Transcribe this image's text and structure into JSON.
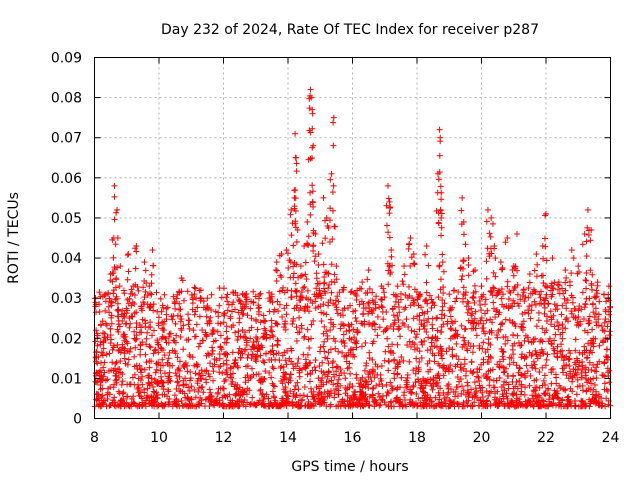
{
  "chart_data": {
    "type": "scatter",
    "title": "Day 232 of 2024, Rate Of TEC Index for receiver p287",
    "xlabel": "GPS time / hours",
    "ylabel": "ROTI / TECUs",
    "xlim": [
      8,
      24
    ],
    "ylim": [
      0,
      0.09
    ],
    "xticks": [
      8,
      10,
      12,
      14,
      16,
      18,
      20,
      22,
      24
    ],
    "xtick_labels": [
      "8",
      "10",
      "12",
      "14",
      "16",
      "18",
      "20",
      "22",
      "24"
    ],
    "yticks": [
      0,
      0.01,
      0.02,
      0.03,
      0.04,
      0.05,
      0.06,
      0.07,
      0.08,
      0.09
    ],
    "ytick_labels": [
      "0",
      "0.01",
      "0.02",
      "0.03",
      "0.04",
      "0.05",
      "0.06",
      "0.07",
      "0.08",
      "0.09"
    ],
    "grid": true,
    "marker": "+",
    "series": [
      {
        "name": "ROTI",
        "color": "#ff0000",
        "points": [
          [
            8.05,
            0.022
          ],
          [
            8.2,
            0.012
          ],
          [
            8.35,
            0.031
          ],
          [
            8.5,
            0.036
          ],
          [
            8.6,
            0.045
          ],
          [
            8.62,
            0.058
          ],
          [
            8.7,
            0.052
          ],
          [
            8.8,
            0.038
          ],
          [
            8.9,
            0.021
          ],
          [
            9.05,
            0.041
          ],
          [
            9.2,
            0.033
          ],
          [
            9.3,
            0.043
          ],
          [
            9.45,
            0.028
          ],
          [
            9.55,
            0.039
          ],
          [
            9.7,
            0.033
          ],
          [
            9.8,
            0.042
          ],
          [
            9.95,
            0.019
          ],
          [
            10.1,
            0.024
          ],
          [
            10.3,
            0.015
          ],
          [
            10.5,
            0.029
          ],
          [
            10.7,
            0.035
          ],
          [
            10.9,
            0.026
          ],
          [
            11.1,
            0.031
          ],
          [
            11.3,
            0.032
          ],
          [
            11.5,
            0.03
          ],
          [
            11.7,
            0.022
          ],
          [
            11.9,
            0.018
          ],
          [
            12.1,
            0.023
          ],
          [
            12.3,
            0.029
          ],
          [
            12.5,
            0.025
          ],
          [
            12.7,
            0.031
          ],
          [
            12.9,
            0.018
          ],
          [
            13.1,
            0.026
          ],
          [
            13.3,
            0.022
          ],
          [
            13.5,
            0.031
          ],
          [
            13.65,
            0.039
          ],
          [
            13.8,
            0.041
          ],
          [
            13.95,
            0.042
          ],
          [
            14.1,
            0.052
          ],
          [
            14.2,
            0.055
          ],
          [
            14.22,
            0.071
          ],
          [
            14.25,
            0.065
          ],
          [
            14.3,
            0.047
          ],
          [
            14.4,
            0.038
          ],
          [
            14.5,
            0.043
          ],
          [
            14.6,
            0.049
          ],
          [
            14.7,
            0.082
          ],
          [
            14.72,
            0.08
          ],
          [
            14.75,
            0.077
          ],
          [
            14.78,
            0.068
          ],
          [
            14.85,
            0.046
          ],
          [
            14.95,
            0.041
          ],
          [
            15.1,
            0.055
          ],
          [
            15.2,
            0.05
          ],
          [
            15.3,
            0.044
          ],
          [
            15.35,
            0.061
          ],
          [
            15.42,
            0.075
          ],
          [
            15.5,
            0.038
          ],
          [
            15.7,
            0.027
          ],
          [
            15.9,
            0.022
          ],
          [
            16.1,
            0.031
          ],
          [
            16.3,
            0.034
          ],
          [
            16.5,
            0.037
          ],
          [
            16.7,
            0.029
          ],
          [
            16.9,
            0.033
          ],
          [
            17.1,
            0.058
          ],
          [
            17.15,
            0.054
          ],
          [
            17.2,
            0.042
          ],
          [
            17.4,
            0.033
          ],
          [
            17.6,
            0.038
          ],
          [
            17.8,
            0.045
          ],
          [
            17.9,
            0.041
          ],
          [
            18.1,
            0.031
          ],
          [
            18.3,
            0.043
          ],
          [
            18.5,
            0.029
          ],
          [
            18.65,
            0.061
          ],
          [
            18.7,
            0.072
          ],
          [
            18.72,
            0.07
          ],
          [
            18.75,
            0.05
          ],
          [
            18.8,
            0.039
          ],
          [
            19.0,
            0.031
          ],
          [
            19.2,
            0.022
          ],
          [
            19.4,
            0.055
          ],
          [
            19.45,
            0.049
          ],
          [
            19.6,
            0.04
          ],
          [
            19.8,
            0.037
          ],
          [
            20.0,
            0.033
          ],
          [
            20.2,
            0.052
          ],
          [
            20.3,
            0.05
          ],
          [
            20.4,
            0.043
          ],
          [
            20.6,
            0.039
          ],
          [
            20.8,
            0.045
          ],
          [
            21.0,
            0.038
          ],
          [
            21.1,
            0.046
          ],
          [
            21.3,
            0.032
          ],
          [
            21.5,
            0.036
          ],
          [
            21.7,
            0.041
          ],
          [
            21.9,
            0.043
          ],
          [
            22.0,
            0.051
          ],
          [
            22.2,
            0.04
          ],
          [
            22.4,
            0.034
          ],
          [
            22.6,
            0.037
          ],
          [
            22.8,
            0.042
          ],
          [
            23.0,
            0.038
          ],
          [
            23.2,
            0.046
          ],
          [
            23.3,
            0.052
          ],
          [
            23.4,
            0.047
          ],
          [
            23.6,
            0.034
          ],
          [
            23.8,
            0.031
          ],
          [
            23.95,
            0.033
          ]
        ],
        "dense_band": {
          "description": "dense cloud of + markers between about 0.003 and 0.03 TECU across the whole time range",
          "x_range": [
            8,
            24
          ],
          "y_floor": 0.003,
          "y_typical_ceiling": 0.03
        }
      }
    ]
  }
}
